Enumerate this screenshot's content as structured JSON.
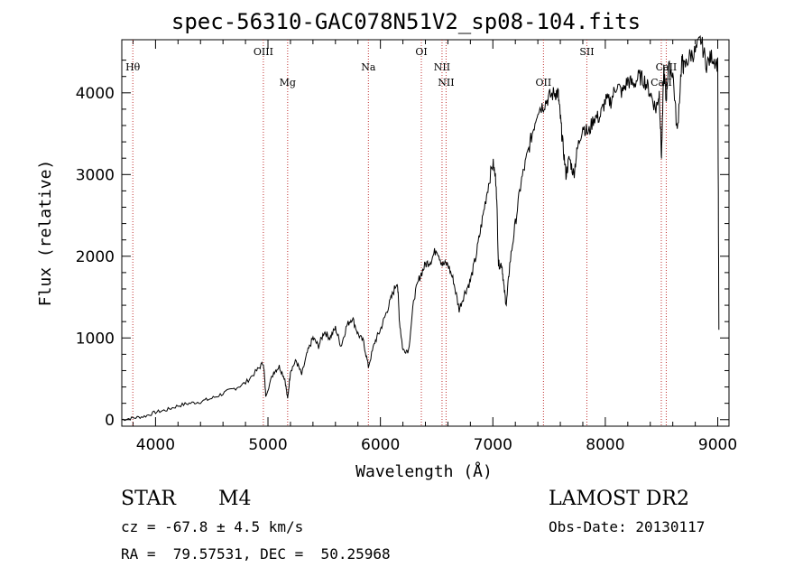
{
  "title": "spec-56310-GAC078N51V2_sp08-104.fits",
  "info": {
    "object_class": "STAR",
    "subclass": "M4",
    "survey": "LAMOST DR2",
    "cz": "cz = -67.8 ± 4.5 km/s",
    "obs_date": "Obs-Date: 20130117",
    "coords": "RA =  79.57531, DEC =  50.25968"
  },
  "chart_data": {
    "type": "line",
    "xlabel": "Wavelength (Å)",
    "ylabel": "Flux (relative)",
    "xlim": [
      3700,
      9100
    ],
    "ylim": [
      -80,
      4650
    ],
    "x_ticks": [
      4000,
      5000,
      6000,
      7000,
      8000,
      9000
    ],
    "y_ticks": [
      0,
      1000,
      2000,
      3000,
      4000
    ],
    "grid": false,
    "line_color": "#000000",
    "marker_color": "#c03030",
    "spectrum": {
      "x": [
        3700,
        3800,
        3900,
        4000,
        4100,
        4200,
        4300,
        4400,
        4500,
        4600,
        4700,
        4800,
        4900,
        4960,
        4980,
        5050,
        5100,
        5150,
        5175,
        5200,
        5250,
        5300,
        5350,
        5400,
        5450,
        5500,
        5550,
        5600,
        5650,
        5700,
        5750,
        5800,
        5850,
        5893,
        5950,
        6000,
        6050,
        6100,
        6150,
        6170,
        6200,
        6250,
        6300,
        6350,
        6400,
        6450,
        6500,
        6550,
        6600,
        6650,
        6700,
        6750,
        6800,
        6850,
        6900,
        6950,
        7000,
        7030,
        7050,
        7080,
        7100,
        7120,
        7150,
        7200,
        7250,
        7300,
        7350,
        7400,
        7450,
        7500,
        7550,
        7580,
        7600,
        7620,
        7650,
        7680,
        7720,
        7750,
        7800,
        7850,
        7900,
        7950,
        8000,
        8050,
        8100,
        8150,
        8200,
        8250,
        8300,
        8350,
        8400,
        8450,
        8480,
        8500,
        8520,
        8540,
        8560,
        8600,
        8640,
        8680,
        8700,
        8750,
        8800,
        8850,
        8900,
        8950,
        9000,
        9010
      ],
      "y": [
        0,
        20,
        40,
        90,
        120,
        170,
        200,
        220,
        260,
        320,
        380,
        450,
        600,
        700,
        300,
        580,
        650,
        500,
        250,
        600,
        720,
        550,
        820,
        1000,
        900,
        1080,
        1000,
        1120,
        900,
        1150,
        1250,
        1050,
        950,
        650,
        950,
        1100,
        1300,
        1500,
        1700,
        1200,
        850,
        850,
        1500,
        1750,
        1900,
        1950,
        2100,
        1900,
        1900,
        1700,
        1350,
        1550,
        1700,
        2000,
        2400,
        2800,
        3150,
        2900,
        1900,
        1900,
        1600,
        1400,
        1900,
        2400,
        2900,
        3200,
        3500,
        3800,
        3850,
        3950,
        4000,
        4000,
        3700,
        3400,
        3000,
        3200,
        3000,
        3300,
        3600,
        3500,
        3700,
        3700,
        3900,
        3900,
        4100,
        4000,
        4150,
        4100,
        4200,
        4150,
        4000,
        3800,
        4000,
        3200,
        4300,
        3900,
        4300,
        4250,
        3500,
        4400,
        4300,
        4450,
        4500,
        4650,
        4350,
        4450,
        4350,
        1100
      ]
    },
    "lines": [
      {
        "label": "Hθ",
        "x": 3798,
        "label_row": 0
      },
      {
        "label": "OIII",
        "x": 4959,
        "label_row": 1
      },
      {
        "label": "Mg",
        "x": 5175,
        "label_row": 2
      },
      {
        "label": "Na",
        "x": 5893,
        "label_row": 0
      },
      {
        "label": "OI",
        "x": 6364,
        "label_row": 1
      },
      {
        "label": "NII",
        "x": 6548,
        "label_row": 0
      },
      {
        "label": "NII",
        "x": 6584,
        "label_row": 2
      },
      {
        "label": "OII",
        "x": 7450,
        "label_row": 2
      },
      {
        "label": "SII",
        "x": 7836,
        "label_row": 1
      },
      {
        "label": "CaII",
        "x": 8498,
        "label_row": 2
      },
      {
        "label": "CaII",
        "x": 8542,
        "label_row": 0
      }
    ]
  }
}
